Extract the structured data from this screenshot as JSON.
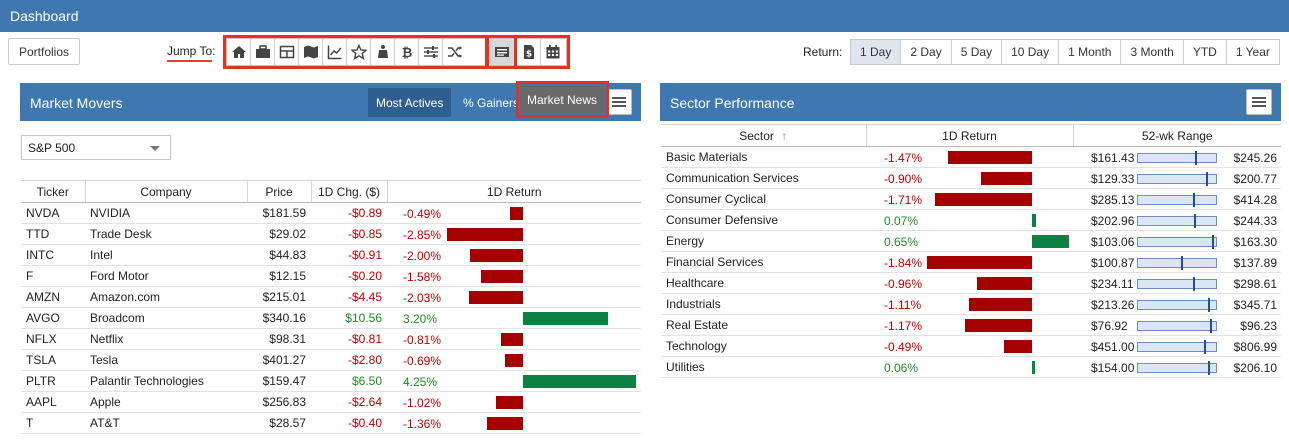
{
  "header": {
    "title": "Dashboard"
  },
  "toolbar": {
    "portfolios_label": "Portfolios",
    "jump_to_label": "Jump To:",
    "jump_icons": [
      "home-icon",
      "briefcase-icon",
      "table-icon",
      "map-icon",
      "chart-line-icon",
      "star-icon",
      "bank-icon",
      "bitcoin-icon",
      "sliders-icon",
      "shuffle-icon",
      "news-icon",
      "dollar-document-icon",
      "calendar-icon"
    ],
    "return_label": "Return:",
    "return_options": [
      "1 Day",
      "2 Day",
      "5 Day",
      "10 Day",
      "1 Month",
      "3 Month",
      "YTD",
      "1 Year"
    ],
    "return_selected": "1 Day"
  },
  "tooltip": {
    "text": "Market News"
  },
  "market_movers": {
    "title": "Market Movers",
    "tabs": [
      "Most Actives",
      "% Gainers"
    ],
    "active_tab": "Most Actives",
    "index_select": "S&P 500",
    "columns": [
      "Ticker",
      "Company",
      "Price",
      "1D Chg. ($)",
      "1D Return"
    ],
    "rows": [
      {
        "ticker": "NVDA",
        "company": "NVIDIA",
        "price": "$181.59",
        "chg": "-$0.89",
        "ret": "-0.49%",
        "ret_value": -0.49
      },
      {
        "ticker": "TTD",
        "company": "Trade Desk",
        "price": "$29.02",
        "chg": "-$0.85",
        "ret": "-2.85%",
        "ret_value": -2.85
      },
      {
        "ticker": "INTC",
        "company": "Intel",
        "price": "$44.83",
        "chg": "-$0.91",
        "ret": "-2.00%",
        "ret_value": -2.0
      },
      {
        "ticker": "F",
        "company": "Ford Motor",
        "price": "$12.15",
        "chg": "-$0.20",
        "ret": "-1.58%",
        "ret_value": -1.58
      },
      {
        "ticker": "AMZN",
        "company": "Amazon.com",
        "price": "$215.01",
        "chg": "-$4.45",
        "ret": "-2.03%",
        "ret_value": -2.03
      },
      {
        "ticker": "AVGO",
        "company": "Broadcom",
        "price": "$340.16",
        "chg": "$10.56",
        "ret": "3.20%",
        "ret_value": 3.2
      },
      {
        "ticker": "NFLX",
        "company": "Netflix",
        "price": "$98.31",
        "chg": "-$0.81",
        "ret": "-0.81%",
        "ret_value": -0.81
      },
      {
        "ticker": "TSLA",
        "company": "Tesla",
        "price": "$401.27",
        "chg": "-$2.80",
        "ret": "-0.69%",
        "ret_value": -0.69
      },
      {
        "ticker": "PLTR",
        "company": "Palantir Technologies",
        "price": "$159.47",
        "chg": "$6.50",
        "ret": "4.25%",
        "ret_value": 4.25
      },
      {
        "ticker": "AAPL",
        "company": "Apple",
        "price": "$256.83",
        "chg": "-$2.64",
        "ret": "-1.02%",
        "ret_value": -1.02
      },
      {
        "ticker": "T",
        "company": "AT&T",
        "price": "$28.57",
        "chg": "-$0.40",
        "ret": "-1.36%",
        "ret_value": -1.36
      }
    ]
  },
  "sector_performance": {
    "title": "Sector Performance",
    "columns": [
      "Sector",
      "1D Return",
      "52-wk Range"
    ],
    "rows": [
      {
        "sector": "Basic Materials",
        "ret": "-1.47%",
        "ret_value": -1.47,
        "low": "$161.43",
        "high": "$245.26",
        "range_pos": 0.73
      },
      {
        "sector": "Communication Services",
        "ret": "-0.90%",
        "ret_value": -0.9,
        "low": "$129.33",
        "high": "$200.77",
        "range_pos": 0.87
      },
      {
        "sector": "Consumer Cyclical",
        "ret": "-1.71%",
        "ret_value": -1.71,
        "low": "$285.13",
        "high": "$414.28",
        "range_pos": 0.7
      },
      {
        "sector": "Consumer Defensive",
        "ret": "0.07%",
        "ret_value": 0.07,
        "low": "$202.96",
        "high": "$244.33",
        "range_pos": 0.72
      },
      {
        "sector": "Energy",
        "ret": "0.65%",
        "ret_value": 0.65,
        "low": "$103.06",
        "high": "$163.30",
        "range_pos": 0.95
      },
      {
        "sector": "Financial Services",
        "ret": "-1.84%",
        "ret_value": -1.84,
        "low": "$100.87",
        "high": "$137.89",
        "range_pos": 0.55
      },
      {
        "sector": "Healthcare",
        "ret": "-0.96%",
        "ret_value": -0.96,
        "low": "$234.11",
        "high": "$298.61",
        "range_pos": 0.7
      },
      {
        "sector": "Industrials",
        "ret": "-1.11%",
        "ret_value": -1.11,
        "low": "$213.26",
        "high": "$345.71",
        "range_pos": 0.9
      },
      {
        "sector": "Real Estate",
        "ret": "-1.17%",
        "ret_value": -1.17,
        "low": "$76.92",
        "high": "$96.23",
        "range_pos": 0.92
      },
      {
        "sector": "Technology",
        "ret": "-0.49%",
        "ret_value": -0.49,
        "low": "$451.00",
        "high": "$806.99",
        "range_pos": 0.85
      },
      {
        "sector": "Utilities",
        "ret": "0.06%",
        "ret_value": 0.06,
        "low": "$154.00",
        "high": "$206.10",
        "range_pos": 0.9
      }
    ]
  },
  "colors": {
    "header": "#3f78b0",
    "neg_bar": "#a50000",
    "pos_bar": "#0b8242",
    "highlight": "#e33220"
  }
}
